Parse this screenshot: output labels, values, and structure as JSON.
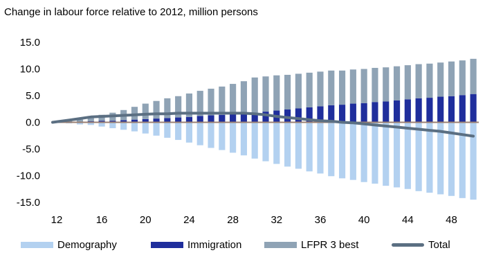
{
  "chart_data": {
    "type": "bar",
    "title": "Change in labour force relative to 2012, million persons",
    "xlabel": "",
    "ylabel": "",
    "x": [
      12,
      13,
      14,
      15,
      16,
      17,
      18,
      19,
      20,
      21,
      22,
      23,
      24,
      25,
      26,
      27,
      28,
      29,
      30,
      31,
      32,
      33,
      34,
      35,
      36,
      37,
      38,
      39,
      40,
      41,
      42,
      43,
      44,
      45,
      46,
      47,
      48,
      49,
      50
    ],
    "x_tick_labels": [
      "12",
      "16",
      "20",
      "24",
      "28",
      "32",
      "36",
      "40",
      "44",
      "48"
    ],
    "y_tick_labels": [
      "15.0",
      "10.0",
      "5.0",
      "0.0",
      "-5.0",
      "-10.0",
      "-15.0"
    ],
    "ylim": [
      -15,
      15
    ],
    "grid": false,
    "legend_position": "bottom",
    "series": [
      {
        "name": "Demography",
        "kind": "bar",
        "color": "#b3d1f0",
        "values": [
          0,
          -0.2,
          -0.4,
          -0.5,
          -0.8,
          -1.1,
          -1.4,
          -1.7,
          -2.1,
          -2.5,
          -2.9,
          -3.3,
          -3.8,
          -4.3,
          -4.8,
          -5.2,
          -5.7,
          -6.2,
          -6.8,
          -7.3,
          -7.8,
          -8.3,
          -8.7,
          -9.2,
          -9.6,
          -10.1,
          -10.5,
          -10.8,
          -11.2,
          -11.5,
          -11.9,
          -12.2,
          -12.5,
          -12.9,
          -13.2,
          -13.5,
          -13.8,
          -14.2,
          -14.5
        ]
      },
      {
        "name": "Immigration",
        "kind": "bar",
        "color": "#1f2e9c",
        "values": [
          0,
          0.1,
          0.1,
          0.2,
          0.3,
          0.3,
          0.4,
          0.5,
          0.6,
          0.7,
          0.8,
          0.9,
          1.0,
          1.2,
          1.3,
          1.4,
          1.6,
          1.7,
          1.8,
          2.0,
          2.2,
          2.4,
          2.6,
          2.8,
          3.0,
          3.2,
          3.3,
          3.5,
          3.6,
          3.8,
          3.9,
          4.1,
          4.3,
          4.5,
          4.6,
          4.8,
          4.9,
          5.1,
          5.3
        ]
      },
      {
        "name": "LFPR 3 best",
        "kind": "bar",
        "color": "#8fa3b5",
        "values": [
          0,
          0.2,
          0.4,
          0.8,
          1.1,
          1.5,
          1.9,
          2.4,
          2.9,
          3.3,
          3.7,
          4.0,
          4.4,
          4.7,
          5.0,
          5.3,
          5.6,
          6.0,
          6.6,
          6.6,
          6.6,
          6.5,
          6.5,
          6.5,
          6.5,
          6.5,
          6.4,
          6.4,
          6.4,
          6.4,
          6.4,
          6.4,
          6.4,
          6.4,
          6.4,
          6.4,
          6.5,
          6.5,
          6.6
        ]
      },
      {
        "name": "Total",
        "kind": "line",
        "color": "#5b6f82",
        "values": [
          0,
          0.4,
          0.7,
          1.0,
          1.1,
          1.2,
          1.3,
          1.4,
          1.5,
          1.6,
          1.6,
          1.7,
          1.7,
          1.7,
          1.7,
          1.7,
          1.7,
          1.7,
          1.6,
          1.4,
          1.1,
          0.9,
          0.7,
          0.5,
          0.3,
          0.2,
          0.0,
          -0.1,
          -0.3,
          -0.5,
          -0.7,
          -0.9,
          -1.1,
          -1.3,
          -1.5,
          -1.7,
          -2.0,
          -2.3,
          -2.6
        ]
      }
    ]
  }
}
